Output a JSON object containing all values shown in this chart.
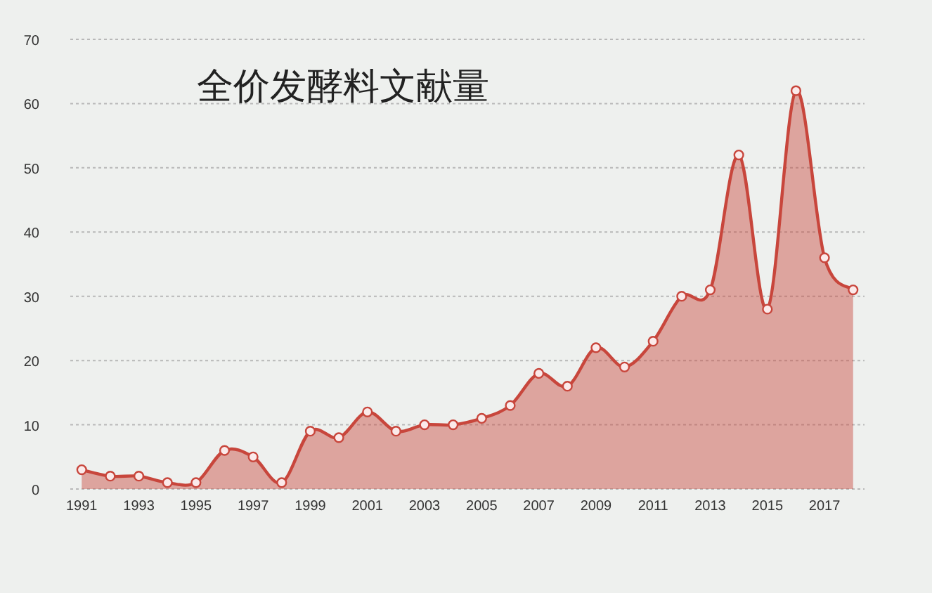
{
  "chart_data": {
    "type": "area",
    "title": "全价发酵料文献量",
    "x": [
      1991,
      1992,
      1993,
      1994,
      1995,
      1996,
      1997,
      1998,
      1999,
      2000,
      2001,
      2002,
      2003,
      2004,
      2005,
      2006,
      2007,
      2008,
      2009,
      2010,
      2011,
      2012,
      2013,
      2014,
      2015,
      2016,
      2017,
      2018
    ],
    "series": [
      {
        "color": "#c8463c",
        "values": [
          3,
          2,
          2,
          1,
          1,
          6,
          5,
          1,
          9,
          8,
          12,
          9,
          10,
          10,
          11,
          13,
          18,
          16,
          22,
          19,
          23,
          30,
          31,
          52,
          28,
          62,
          36,
          31
        ]
      }
    ],
    "xlim": [
      1990.6,
      2018.4
    ],
    "xticks": [
      1991,
      1993,
      1995,
      1997,
      1999,
      2001,
      2003,
      2005,
      2007,
      2009,
      2011,
      2013,
      2015,
      2017
    ],
    "ylim": [
      0,
      70
    ],
    "yticks": [
      0,
      10,
      20,
      30,
      40,
      50,
      60,
      70
    ],
    "grid": "y",
    "marker": "circle",
    "line_style": "solid"
  }
}
